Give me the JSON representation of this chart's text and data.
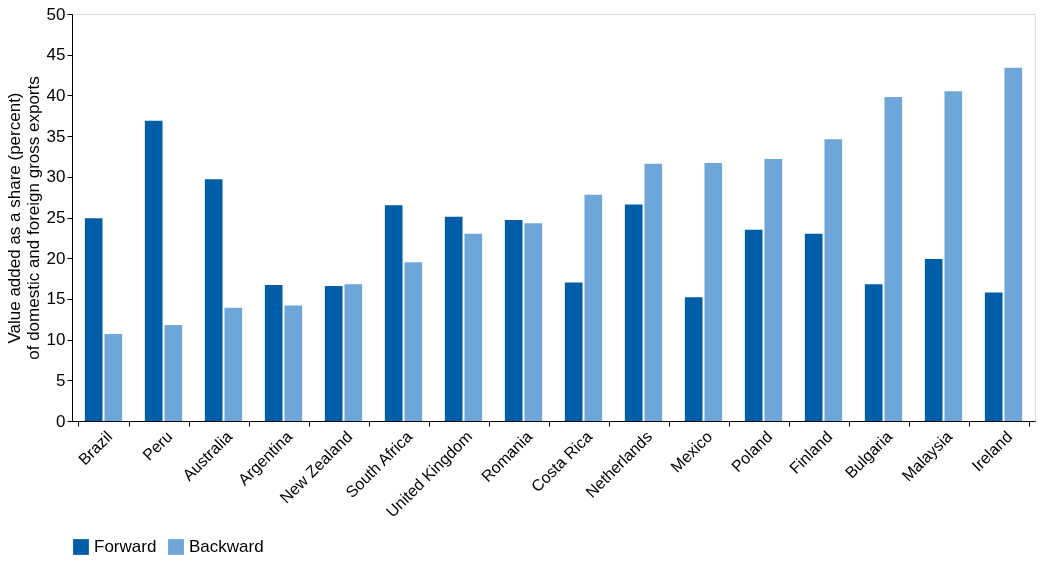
{
  "chart_data": {
    "type": "bar",
    "ylabel": "Value added as a share (percent) of domestic and foreign gross exports",
    "categories": [
      "Brazil",
      "Peru",
      "Australia",
      "Argentina",
      "New Zealand",
      "South Africa",
      "United Kingdom",
      "Romania",
      "Costa Rica",
      "Netherlands",
      "Mexico",
      "Poland",
      "Finland",
      "Bulgaria",
      "Malaysia",
      "Ireland"
    ],
    "series": [
      {
        "name": "Forward",
        "color": "#005ea8",
        "values": [
          24.9,
          36.9,
          29.7,
          16.7,
          16.6,
          26.5,
          25.1,
          24.7,
          17.0,
          26.6,
          15.2,
          23.5,
          23.0,
          16.8,
          19.9,
          15.8
        ]
      },
      {
        "name": "Backward",
        "color": "#6fa6da",
        "values": [
          10.7,
          11.8,
          13.9,
          14.2,
          16.8,
          19.5,
          23.0,
          24.3,
          27.8,
          31.6,
          31.7,
          32.2,
          34.6,
          39.8,
          40.5,
          43.4
        ]
      }
    ],
    "ylim": [
      0,
      50
    ],
    "yticks": [
      0,
      5,
      10,
      15,
      20,
      25,
      30,
      35,
      40,
      45,
      50
    ],
    "grid": false,
    "legend": "bottom"
  }
}
